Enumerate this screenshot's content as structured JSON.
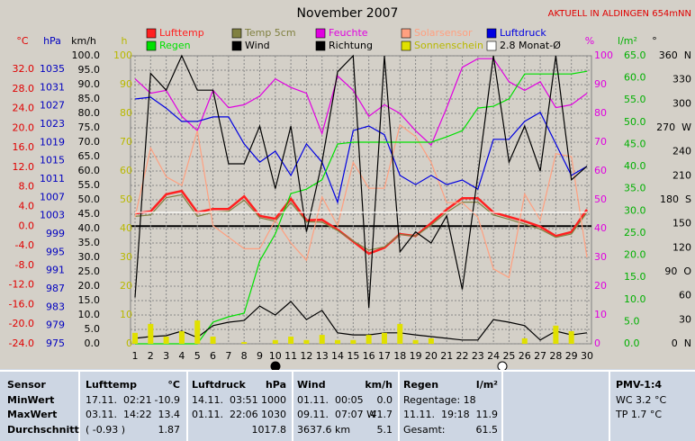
{
  "header": {
    "title": "AKTUELL IN ALDINGEN 654mNN"
  },
  "chart_data": {
    "type": "line",
    "title": "November 2007",
    "x": [
      1,
      2,
      3,
      4,
      5,
      6,
      7,
      8,
      9,
      10,
      11,
      12,
      13,
      14,
      15,
      16,
      17,
      18,
      19,
      20,
      21,
      22,
      23,
      24,
      25,
      26,
      27,
      28,
      29,
      30
    ],
    "xlim": [
      1,
      30
    ],
    "grid": true,
    "axes": [
      {
        "label": "°C",
        "color": "#e00000",
        "lim": [
          -24,
          32
        ],
        "ticks": [
          {
            "value": -24,
            "label": "-24.0"
          },
          {
            "value": -20,
            "label": "-20.0"
          },
          {
            "value": -16,
            "label": "-16.0"
          },
          {
            "value": -12,
            "label": "-12.0"
          },
          {
            "value": -8,
            "label": "-8.0"
          },
          {
            "value": -4,
            "label": "-4.0"
          },
          {
            "value": 0,
            "label": "0.0"
          },
          {
            "value": 4,
            "label": "4.0"
          },
          {
            "value": 8,
            "label": "8.0"
          },
          {
            "value": 12,
            "label": "12.0"
          },
          {
            "value": 16,
            "label": "16.0"
          },
          {
            "value": 20,
            "label": "20.0"
          },
          {
            "value": 24,
            "label": "24.0"
          },
          {
            "value": 28,
            "label": "28.0"
          },
          {
            "value": 32,
            "label": "32.0"
          }
        ]
      },
      {
        "label": "hPa",
        "color": "#0000c0",
        "lim": [
          975,
          1035
        ],
        "ticks": [
          975,
          979,
          983,
          987,
          991,
          995,
          999,
          1003,
          1007,
          1011,
          1015,
          1019,
          1023,
          1027,
          1031,
          1035
        ]
      },
      {
        "label": "km/h",
        "color": "#000000",
        "lim": [
          0,
          100
        ],
        "ticks": [
          {
            "value": 0,
            "label": "0.0"
          },
          {
            "value": 5,
            "label": "5.0"
          },
          {
            "value": 10,
            "label": "10.0"
          },
          {
            "value": 15,
            "label": "15.0"
          },
          {
            "value": 20,
            "label": "20.0"
          },
          {
            "value": 25,
            "label": "25.0"
          },
          {
            "value": 30,
            "label": "30.0"
          },
          {
            "value": 35,
            "label": "35.0"
          },
          {
            "value": 40,
            "label": "40.0"
          },
          {
            "value": 45,
            "label": "45.0"
          },
          {
            "value": 50,
            "label": "50.0"
          },
          {
            "value": 55,
            "label": "55.0"
          },
          {
            "value": 60,
            "label": "60.0"
          },
          {
            "value": 65,
            "label": "65.0"
          },
          {
            "value": 70,
            "label": "70.0"
          },
          {
            "value": 75,
            "label": "75.0"
          },
          {
            "value": 80,
            "label": "80.0"
          },
          {
            "value": 85,
            "label": "85.0"
          },
          {
            "value": 90,
            "label": "90.0"
          },
          {
            "value": 95,
            "label": "95.0"
          },
          {
            "value": 100,
            "label": "100.0"
          }
        ]
      },
      {
        "label": "h",
        "color": "#b8b800",
        "lim": [
          0,
          100
        ],
        "ticks": [
          0,
          10,
          20,
          30,
          40,
          50,
          60,
          70,
          80,
          90,
          100
        ]
      },
      {
        "label": "%",
        "color": "#e000e0",
        "lim": [
          0,
          100
        ],
        "ticks": [
          0,
          10,
          20,
          30,
          40,
          50,
          60,
          70,
          80,
          90,
          100
        ]
      },
      {
        "label": "l/m²",
        "color": "#00b000",
        "lim": [
          0,
          65
        ],
        "ticks": [
          {
            "value": 0,
            "label": "0.0"
          },
          {
            "value": 5,
            "label": "5.0"
          },
          {
            "value": 10,
            "label": "10.0"
          },
          {
            "value": 15,
            "label": "15.0"
          },
          {
            "value": 20,
            "label": "20.0"
          },
          {
            "value": 25,
            "label": "25.0"
          },
          {
            "value": 30,
            "label": "30.0"
          },
          {
            "value": 35,
            "label": "35.0"
          },
          {
            "value": 40,
            "label": "40.0"
          },
          {
            "value": 45,
            "label": "45.0"
          },
          {
            "value": 50,
            "label": "50.0"
          },
          {
            "value": 55,
            "label": "55.0"
          },
          {
            "value": 60,
            "label": "60.0"
          },
          {
            "value": 65,
            "label": "65.0"
          }
        ]
      },
      {
        "label": "°",
        "color": "#000000",
        "lim": [
          0,
          360
        ],
        "ticks": [
          {
            "value": 0,
            "label": "0  N"
          },
          {
            "value": 30,
            "label": "30"
          },
          {
            "value": 60,
            "label": "60"
          },
          {
            "value": 90,
            "label": "90  O"
          },
          {
            "value": 120,
            "label": "120"
          },
          {
            "value": 150,
            "label": "150"
          },
          {
            "value": 180,
            "label": "180  S"
          },
          {
            "value": 210,
            "label": "210"
          },
          {
            "value": 240,
            "label": "240"
          },
          {
            "value": 270,
            "label": "270  W"
          },
          {
            "value": 300,
            "label": "300"
          },
          {
            "value": 330,
            "label": "330"
          },
          {
            "value": 360,
            "label": "360  N"
          }
        ]
      }
    ],
    "series": [
      {
        "name": "Lufttemp",
        "color": "#ff2020",
        "axis": "°C",
        "values": [
          2.6,
          3.0,
          6.5,
          7.2,
          2.8,
          3.5,
          3.5,
          6.1,
          2.1,
          1.5,
          5.6,
          1.2,
          1.3,
          -0.7,
          -3.1,
          -5.6,
          -4.4,
          -1.6,
          -2.0,
          0.6,
          3.4,
          5.7,
          5.7,
          2.8,
          1.9,
          1.0,
          -0.1,
          -2.0,
          -1.2,
          3.4
        ]
      },
      {
        "name": "Temp 5cm",
        "color": "#808040",
        "axis": "°C",
        "values": [
          2.0,
          2.3,
          5.8,
          6.4,
          2.0,
          2.8,
          3.0,
          5.3,
          1.7,
          1.0,
          4.8,
          0.9,
          0.8,
          -0.9,
          -3.0,
          -4.9,
          -4.2,
          -1.7,
          -2.0,
          0.2,
          2.8,
          4.9,
          4.9,
          2.3,
          1.4,
          0.4,
          -0.6,
          -2.3,
          -1.6,
          2.8
        ]
      },
      {
        "name": "Feuchte",
        "color": "#e000e0",
        "axis": "%",
        "values": [
          92,
          87,
          88,
          79,
          74,
          88,
          82,
          83,
          86,
          92,
          89,
          87,
          73,
          93,
          88,
          79,
          83,
          80,
          74,
          69,
          82,
          96,
          99,
          99,
          91,
          88,
          91,
          82,
          83,
          87
        ]
      },
      {
        "name": "Solarsensor",
        "color": "#ffa080",
        "axis": "h",
        "values": [
          44,
          68,
          58,
          55,
          74,
          41,
          37,
          33,
          33,
          43,
          35,
          29,
          51,
          41,
          63,
          54,
          54,
          76,
          72,
          63,
          49,
          49,
          44,
          26,
          23,
          52,
          43,
          66,
          65,
          30
        ]
      },
      {
        "name": "Luftdruck",
        "color": "#0000e0",
        "axis": "hPa",
        "values": [
          1028.5,
          1028.9,
          1026.5,
          1023.6,
          1023.6,
          1024.6,
          1024.6,
          1018.7,
          1014.7,
          1017.1,
          1011.8,
          1018.7,
          1014.7,
          1005.9,
          1021.6,
          1022.6,
          1020.7,
          1011.8,
          1009.8,
          1011.8,
          1009.8,
          1010.8,
          1008.8,
          1019.7,
          1019.7,
          1023.6,
          1025.6,
          1018.7,
          1011.8,
          1013.8
        ]
      },
      {
        "name": "Regen",
        "color": "#00e000",
        "axis": "l/m²",
        "values": [
          0,
          0,
          0,
          0,
          0,
          4.9,
          6.1,
          6.9,
          18.7,
          24.8,
          33.9,
          34.9,
          37.0,
          45.1,
          45.5,
          45.5,
          45.5,
          45.5,
          45.5,
          45.5,
          46.7,
          48.1,
          53.2,
          53.6,
          55.3,
          60.9,
          60.9,
          60.9,
          60.9,
          61.5
        ]
      },
      {
        "name": "Wind",
        "color": "#000000",
        "axis": "km/h",
        "values": [
          1.9,
          2.5,
          2.8,
          4.4,
          2.2,
          6.3,
          7.5,
          8.1,
          13.1,
          10.0,
          14.7,
          8.4,
          11.6,
          3.8,
          3.1,
          3.1,
          3.8,
          3.8,
          3.1,
          2.5,
          1.9,
          1.3,
          1.3,
          8.4,
          7.5,
          6.3,
          1.3,
          4.4,
          3.1,
          3.8
        ]
      },
      {
        "name": "Richtung",
        "color": "#000000",
        "axis": "°",
        "values": [
          58,
          338,
          317,
          360,
          317,
          317,
          225,
          225,
          272,
          194,
          272,
          140,
          227,
          340,
          360,
          45,
          360,
          115,
          140,
          126,
          160,
          68,
          211,
          360,
          227,
          272,
          216,
          360,
          205,
          222
        ]
      },
      {
        "name": "Sonnenschein",
        "color": "#e0e000",
        "axis": "h",
        "mark": "bar",
        "values": [
          3.8,
          6.9,
          2.5,
          4.4,
          8.1,
          2.5,
          0,
          0.6,
          0,
          1.3,
          2.5,
          1.3,
          3.1,
          1.3,
          1.3,
          3.1,
          3.8,
          6.9,
          1.3,
          1.9,
          0,
          0,
          0,
          0,
          0,
          1.9,
          0,
          6.3,
          4.4,
          0
        ]
      },
      {
        "name": "2.8 Monat-Ø",
        "color": "#ffffff",
        "axis": "°C",
        "values": [
          2.8,
          2.8,
          2.8,
          2.8,
          2.8,
          2.8,
          2.8,
          2.8,
          2.8,
          2.8,
          2.8,
          2.8,
          2.8,
          2.8,
          2.8,
          2.8,
          2.8,
          2.8,
          2.8,
          2.8,
          2.8,
          2.8,
          2.8,
          2.8,
          2.8,
          2.8,
          2.8,
          2.8,
          2.8,
          2.8
        ]
      }
    ]
  },
  "table": {
    "rows": [
      [
        "Sensor",
        "Lufttemp",
        "°C",
        "Luftdruck",
        "hPa",
        "Wind",
        "km/h",
        "Regen",
        "l/m²",
        "PMV-1:4"
      ],
      [
        "MinWert",
        "17.11.  02:21",
        "-10.9",
        "14.11.  03:51",
        "1000",
        "01.11.  00:05",
        "0.0",
        "Regentage: 18",
        null,
        "WC 3.2 °C"
      ],
      [
        "MaxWert",
        "03.11.  14:22",
        "13.4",
        "01.11.  22:06",
        "1030",
        "09.11.  07:07 W",
        "41.7",
        "11.11.  19:18",
        "11.9",
        "TP 1.7 °C"
      ],
      [
        "Durchschnitt",
        "( -0.93 )",
        "1.87",
        null,
        "1017.8",
        "3637.6 km",
        "5.1",
        "Gesamt:",
        "61.5",
        null
      ]
    ]
  }
}
